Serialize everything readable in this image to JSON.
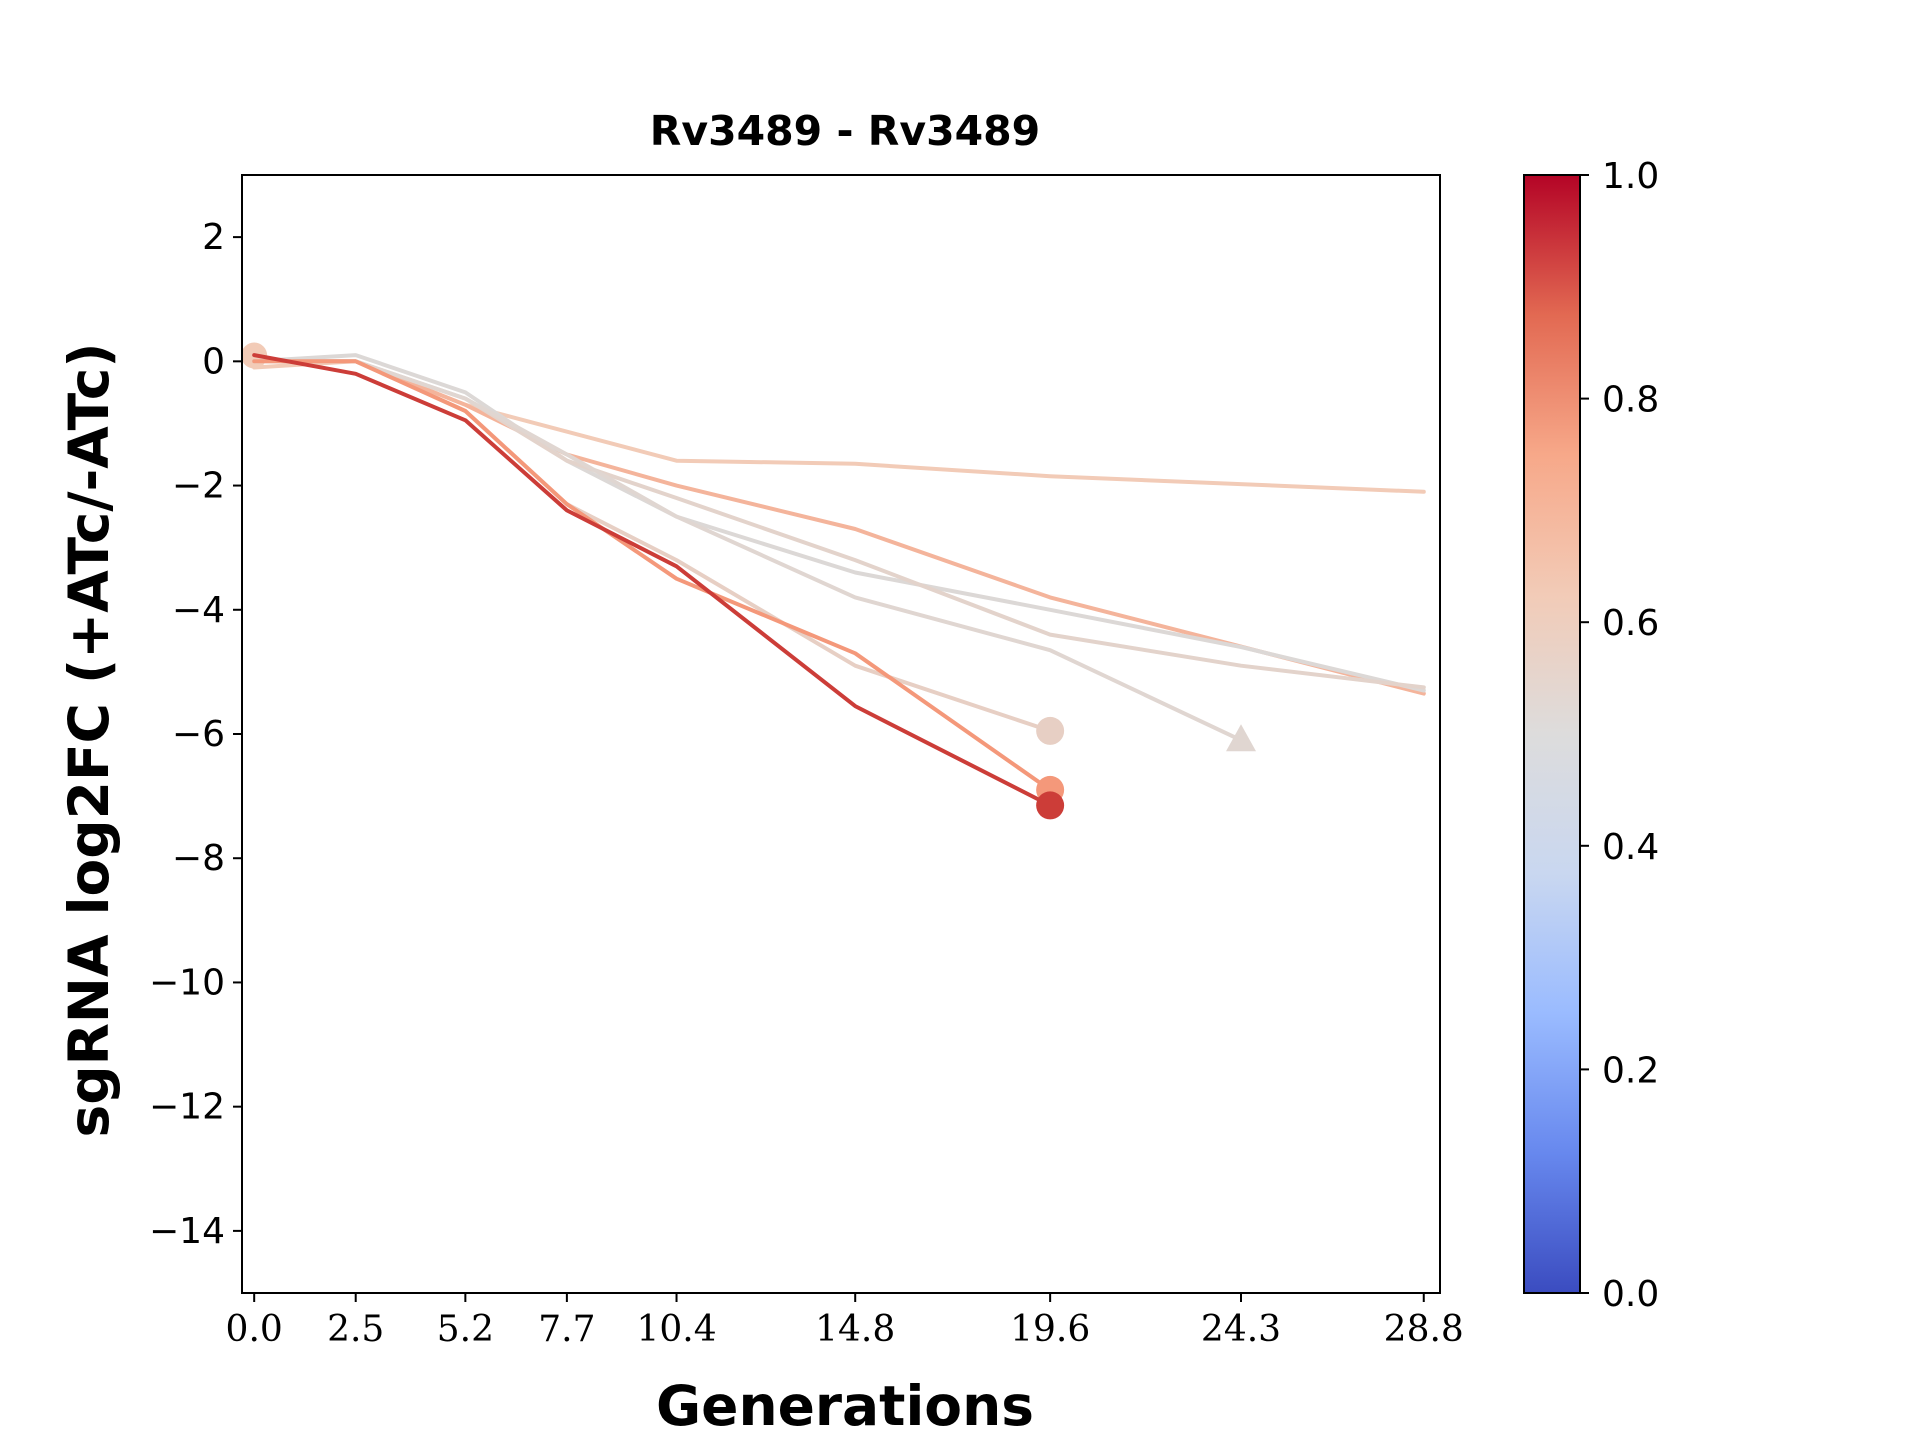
{
  "chart_data": {
    "type": "line",
    "title": "Rv3489 - Rv3489",
    "xlabel": "Generations",
    "ylabel": "sgRNA log2FC (+ATc/-ATc)",
    "xlim": [
      -0.3,
      29.2
    ],
    "ylim": [
      -15,
      3
    ],
    "x_ticks": [
      0.0,
      2.5,
      5.2,
      7.7,
      10.4,
      14.8,
      19.6,
      24.3,
      28.8
    ],
    "x_tick_labels": [
      "0.0",
      "2.5",
      "5.2",
      "7.7",
      "10.4",
      "14.8",
      "19.6",
      "24.3",
      "28.8"
    ],
    "y_ticks": [
      2,
      0,
      -2,
      -4,
      -6,
      -8,
      -10,
      -12,
      -14
    ],
    "y_tick_labels": [
      "2",
      "0",
      "−2",
      "−4",
      "−6",
      "−8",
      "−10",
      "−12",
      "−14"
    ],
    "grid": false,
    "legend": "none",
    "colorbar": {
      "colormap": "coolwarm",
      "range": [
        0.0,
        1.0
      ],
      "ticks": [
        0.0,
        0.2,
        0.4,
        0.6,
        0.8,
        1.0
      ],
      "tick_labels": [
        "0.0",
        "0.2",
        "0.4",
        "0.6",
        "0.8",
        "1.0"
      ],
      "stops": [
        "#3b4cc0",
        "#6788ee",
        "#9abbff",
        "#c9d7f0",
        "#dddcdc",
        "#f2cbb7",
        "#f7a889",
        "#e26952",
        "#b40426"
      ]
    },
    "series": [
      {
        "color": "#f2cbb7",
        "points": [
          [
            0.0,
            -0.1
          ],
          [
            2.5,
            0.0
          ],
          [
            5.2,
            -0.7
          ],
          [
            10.4,
            -1.6
          ],
          [
            14.8,
            -1.65
          ],
          [
            19.6,
            -1.85
          ],
          [
            28.8,
            -2.1
          ]
        ],
        "end_marker": "none",
        "start_marker": "circle"
      },
      {
        "color": "#f4b49b",
        "points": [
          [
            0.0,
            0.0
          ],
          [
            2.5,
            0.0
          ],
          [
            5.2,
            -0.7
          ],
          [
            7.7,
            -1.5
          ],
          [
            10.4,
            -2.0
          ],
          [
            14.8,
            -2.7
          ],
          [
            19.6,
            -3.8
          ],
          [
            28.8,
            -5.35
          ]
        ],
        "end_marker": "none"
      },
      {
        "color": "#dcd8d6",
        "points": [
          [
            0.0,
            0.0
          ],
          [
            2.5,
            0.1
          ],
          [
            5.2,
            -0.5
          ],
          [
            7.7,
            -1.6
          ],
          [
            10.4,
            -2.5
          ],
          [
            14.8,
            -3.4
          ],
          [
            19.6,
            -4.0
          ],
          [
            24.3,
            -4.6
          ],
          [
            28.8,
            -5.3
          ]
        ],
        "end_marker": "none"
      },
      {
        "color": "#e3d3cb",
        "points": [
          [
            0.0,
            0.0
          ],
          [
            2.5,
            0.0
          ],
          [
            5.2,
            -0.6
          ],
          [
            7.7,
            -1.6
          ],
          [
            10.4,
            -2.2
          ],
          [
            14.8,
            -3.2
          ],
          [
            19.6,
            -4.4
          ],
          [
            24.3,
            -4.9
          ],
          [
            28.8,
            -5.25
          ]
        ],
        "end_marker": "none"
      },
      {
        "color": "#e0d6d1",
        "points": [
          [
            0.0,
            0.0
          ],
          [
            2.5,
            0.0
          ],
          [
            5.2,
            -0.6
          ],
          [
            7.7,
            -1.5
          ],
          [
            10.4,
            -2.5
          ],
          [
            14.8,
            -3.8
          ],
          [
            19.6,
            -4.65
          ],
          [
            24.3,
            -6.1
          ]
        ],
        "end_marker": "triangle"
      },
      {
        "color": "#e7cfc4",
        "points": [
          [
            0.0,
            0.0
          ],
          [
            2.5,
            0.0
          ],
          [
            5.2,
            -0.8
          ],
          [
            7.7,
            -2.3
          ],
          [
            10.4,
            -3.2
          ],
          [
            14.8,
            -4.9
          ],
          [
            19.6,
            -5.95
          ]
        ],
        "end_marker": "circle"
      },
      {
        "color": "#f4987a",
        "points": [
          [
            0.0,
            0.0
          ],
          [
            2.5,
            0.0
          ],
          [
            5.2,
            -0.8
          ],
          [
            7.7,
            -2.3
          ],
          [
            10.4,
            -3.5
          ],
          [
            14.8,
            -4.7
          ],
          [
            19.6,
            -6.9
          ]
        ],
        "end_marker": "circle"
      },
      {
        "color": "#cc3d38",
        "points": [
          [
            0.0,
            0.1
          ],
          [
            2.5,
            -0.2
          ],
          [
            5.2,
            -0.95
          ],
          [
            7.7,
            -2.4
          ],
          [
            10.4,
            -3.3
          ],
          [
            14.8,
            -5.55
          ],
          [
            19.6,
            -7.15
          ]
        ],
        "end_marker": "circle"
      }
    ]
  }
}
